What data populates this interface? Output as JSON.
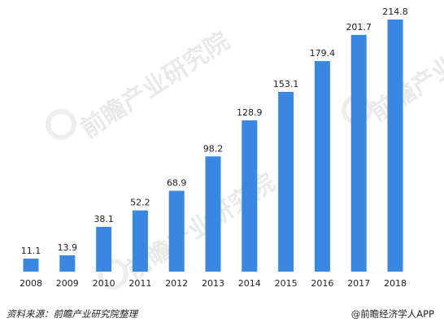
{
  "chart_data": {
    "type": "bar",
    "categories": [
      "2008",
      "2009",
      "2010",
      "2011",
      "2012",
      "2013",
      "2014",
      "2015",
      "2016",
      "2017",
      "2018"
    ],
    "values": [
      11.1,
      13.9,
      38.1,
      52.2,
      68.9,
      98.2,
      128.9,
      153.1,
      179.4,
      201.7,
      214.8
    ],
    "data_labels": [
      "11.1",
      "13.9",
      "38.1",
      "52.2",
      "68.9",
      "98.2",
      "128.9",
      "153.1",
      "179.4",
      "201.7",
      "214.8"
    ],
    "ylim": [
      0,
      214.8
    ],
    "bar_color": "#3a87e0",
    "grid": false,
    "legend": "none"
  },
  "watermark": {
    "text": "前瞻产业研究院"
  },
  "footer": {
    "source": "资料来源：前瞻产业研究院整理",
    "brand": "@前瞻经济学人APP"
  }
}
